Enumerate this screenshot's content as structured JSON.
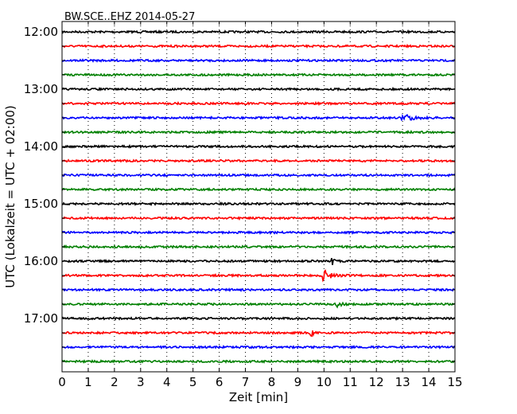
{
  "chart_data": {
    "type": "line",
    "title": "BW.SCE..EHZ 2014-05-27",
    "xlabel": "Zeit  [min]",
    "ylabel": "UTC (Lokalzeit = UTC + 02:00)",
    "xlim": [
      0,
      15
    ],
    "x_ticks": [
      "0",
      "1",
      "2",
      "3",
      "4",
      "5",
      "6",
      "7",
      "8",
      "9",
      "10",
      "11",
      "12",
      "13",
      "14",
      "15"
    ],
    "y_tick_labels": [
      "12:00",
      "13:00",
      "14:00",
      "15:00",
      "16:00",
      "17:00"
    ],
    "trace_interval_min": 15,
    "trace_start_labels": [
      "12:00",
      "12:15",
      "12:30",
      "12:45",
      "13:00",
      "13:15",
      "13:30",
      "13:45",
      "14:00",
      "14:15",
      "14:30",
      "14:45",
      "15:00",
      "15:15",
      "15:30",
      "15:45",
      "16:00",
      "16:15",
      "16:30",
      "16:45",
      "17:00",
      "17:15",
      "17:30",
      "17:45"
    ],
    "color_cycle": [
      "#000000",
      "#ff0000",
      "#0000ff",
      "#008000"
    ],
    "grid": "vertical dotted every minute",
    "events": [
      {
        "trace": 6,
        "minute": 13.0,
        "amplitude": 5,
        "duration": 1.2
      },
      {
        "trace": 16,
        "minute": 10.3,
        "amplitude": 6,
        "duration": 0.2
      },
      {
        "trace": 17,
        "minute": 10.0,
        "amplitude": 7,
        "duration": 1.0
      },
      {
        "trace": 19,
        "minute": 10.5,
        "amplitude": 3,
        "duration": 0.6
      },
      {
        "trace": 21,
        "minute": 9.5,
        "amplitude": 9,
        "duration": 0.2
      }
    ]
  }
}
